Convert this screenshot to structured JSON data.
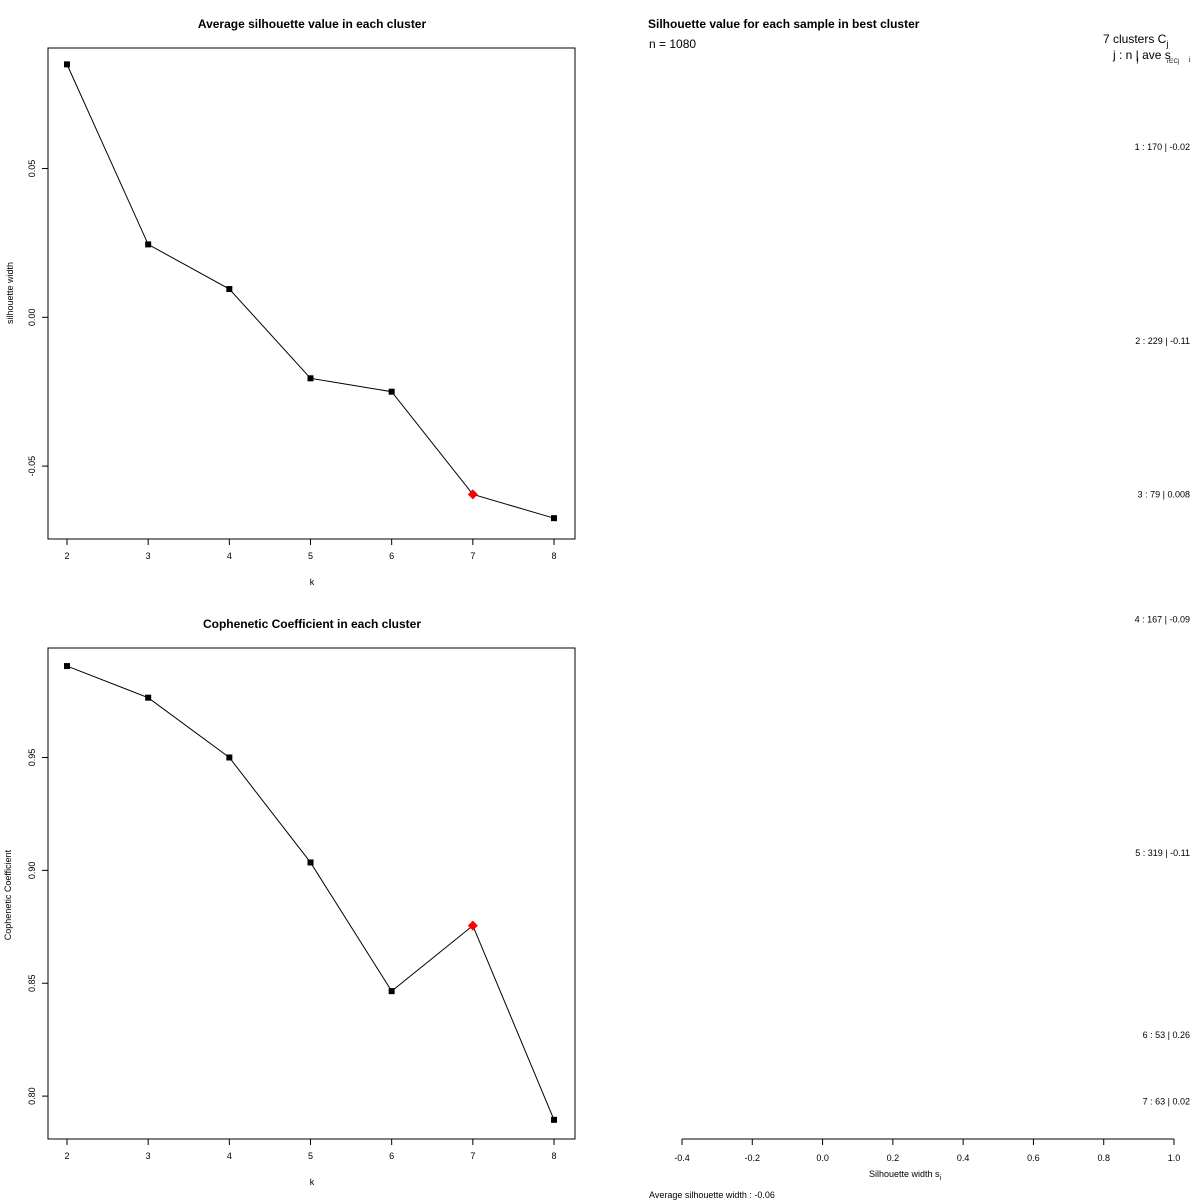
{
  "chart_data": [
    {
      "id": "avg_silhouette",
      "type": "line",
      "title": "Average silhouette value in each cluster",
      "xlabel": "k",
      "ylabel": "silhouette width",
      "x": [
        2,
        3,
        4,
        5,
        6,
        7,
        8
      ],
      "values": [
        0.085,
        0.0245,
        0.0095,
        -0.0205,
        -0.025,
        -0.0595,
        -0.0675
      ],
      "highlight_index": 5,
      "highlight_color": "#ff0000",
      "line_color": "#000000",
      "xticks": [
        "2",
        "3",
        "4",
        "5",
        "6",
        "7",
        "8"
      ],
      "yticks": [
        {
          "value": 0.05,
          "label": "0.05"
        },
        {
          "value": 0.0,
          "label": "0.00"
        },
        {
          "value": -0.05,
          "label": "-0.05"
        }
      ],
      "ylim": [
        -0.0745,
        0.0905
      ]
    },
    {
      "id": "cophenetic",
      "type": "line",
      "title": "Cophenetic Coefficient in each cluster",
      "xlabel": "k",
      "ylabel": "Cophenetic Coefficient",
      "x": [
        2,
        3,
        4,
        5,
        6,
        7,
        8
      ],
      "values": [
        0.9905,
        0.9765,
        0.95,
        0.9035,
        0.8465,
        0.8755,
        0.7895
      ],
      "highlight_index": 5,
      "highlight_color": "#ff0000",
      "line_color": "#000000",
      "xticks": [
        "2",
        "3",
        "4",
        "5",
        "6",
        "7",
        "8"
      ],
      "yticks": [
        {
          "value": 0.95,
          "label": "0.95"
        },
        {
          "value": 0.9,
          "label": "0.90"
        },
        {
          "value": 0.85,
          "label": "0.85"
        },
        {
          "value": 0.8,
          "label": "0.80"
        }
      ],
      "ylim": [
        0.781,
        0.9985
      ]
    },
    {
      "id": "silhouette_samples",
      "type": "bar",
      "title": "Silhouette value for each sample in best cluster",
      "n_label": "n = 1080",
      "header": "7 clusters  C",
      "header_sub": "j",
      "col_header": "j :  n  | ave     s",
      "col_header_sub_n": "j",
      "col_header_sub_ave": "i∈Cj",
      "col_header_sub_s": "i",
      "clusters": [
        {
          "label": "1 :   170  |  -0.02",
          "j": 1,
          "n": 170,
          "ave": -0.02
        },
        {
          "label": "2 :   229  |  -0.11",
          "j": 2,
          "n": 229,
          "ave": -0.11
        },
        {
          "label": "3 :   79  |  0.008",
          "j": 3,
          "n": 79,
          "ave": 0.008
        },
        {
          "label": "4 :   167  |  -0.09",
          "j": 4,
          "n": 167,
          "ave": -0.09
        },
        {
          "label": "5 :   319  |  -0.11",
          "j": 5,
          "n": 319,
          "ave": -0.11
        },
        {
          "label": "6 :   53  |  0.26",
          "j": 6,
          "n": 53,
          "ave": 0.26
        },
        {
          "label": "7 :   63  |  0.02",
          "j": 7,
          "n": 63,
          "ave": 0.02
        }
      ],
      "xlim": [
        -0.4,
        1.0
      ],
      "xticks": [
        "-0.4",
        "-0.2",
        "0.0",
        "0.2",
        "0.4",
        "0.6",
        "0.8",
        "1.0"
      ],
      "xlabel": "Silhouette width s",
      "xlabel_sub": "i",
      "footer": "Average silhouette width :  -0.06"
    }
  ]
}
